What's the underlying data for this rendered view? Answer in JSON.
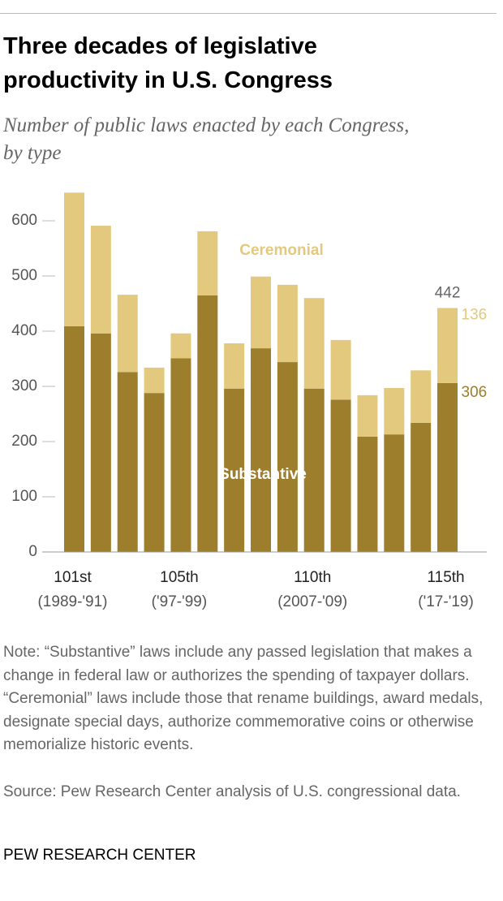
{
  "chart_data": {
    "type": "stacked-bar",
    "title": "Three decades of legislative productivity in U.S. Congress",
    "subtitle": "Number of public laws enacted by each Congress, by type",
    "categories": [
      "101st",
      null,
      null,
      null,
      "105th",
      null,
      null,
      null,
      null,
      "110th",
      null,
      null,
      null,
      null,
      "115th"
    ],
    "category_sublabels": [
      "(1989-'91)",
      null,
      null,
      null,
      "('97-'99)",
      null,
      null,
      null,
      null,
      "(2007-'09)",
      null,
      null,
      null,
      null,
      "('17-'19)"
    ],
    "series": [
      {
        "name": "Substantive",
        "color": "#9c7e2c",
        "values": [
          409,
          396,
          326,
          288,
          351,
          465,
          296,
          369,
          344,
          296,
          276,
          209,
          213,
          234,
          306
        ]
      },
      {
        "name": "Ceremonial",
        "color": "#e3c97e",
        "values": [
          242,
          195,
          140,
          46,
          45,
          116,
          82,
          130,
          140,
          164,
          108,
          75,
          84,
          95,
          136
        ]
      }
    ],
    "last_total_label": 442,
    "ylim": [
      0,
      660
    ],
    "yticks": [
      0,
      100,
      200,
      300,
      400,
      500,
      600
    ],
    "note": "Note: “Substantive” laws include any passed legislation that makes a change in federal law or authorizes the spending of taxpayer dollars. “Ceremonial” laws include those that rename buildings, award medals, designate special days, authorize commemorative coins or otherwise memorialize historic events.",
    "source": "Source: Pew Research Center analysis of U.S. congressional data.",
    "credit": "PEW RESEARCH CENTER"
  }
}
